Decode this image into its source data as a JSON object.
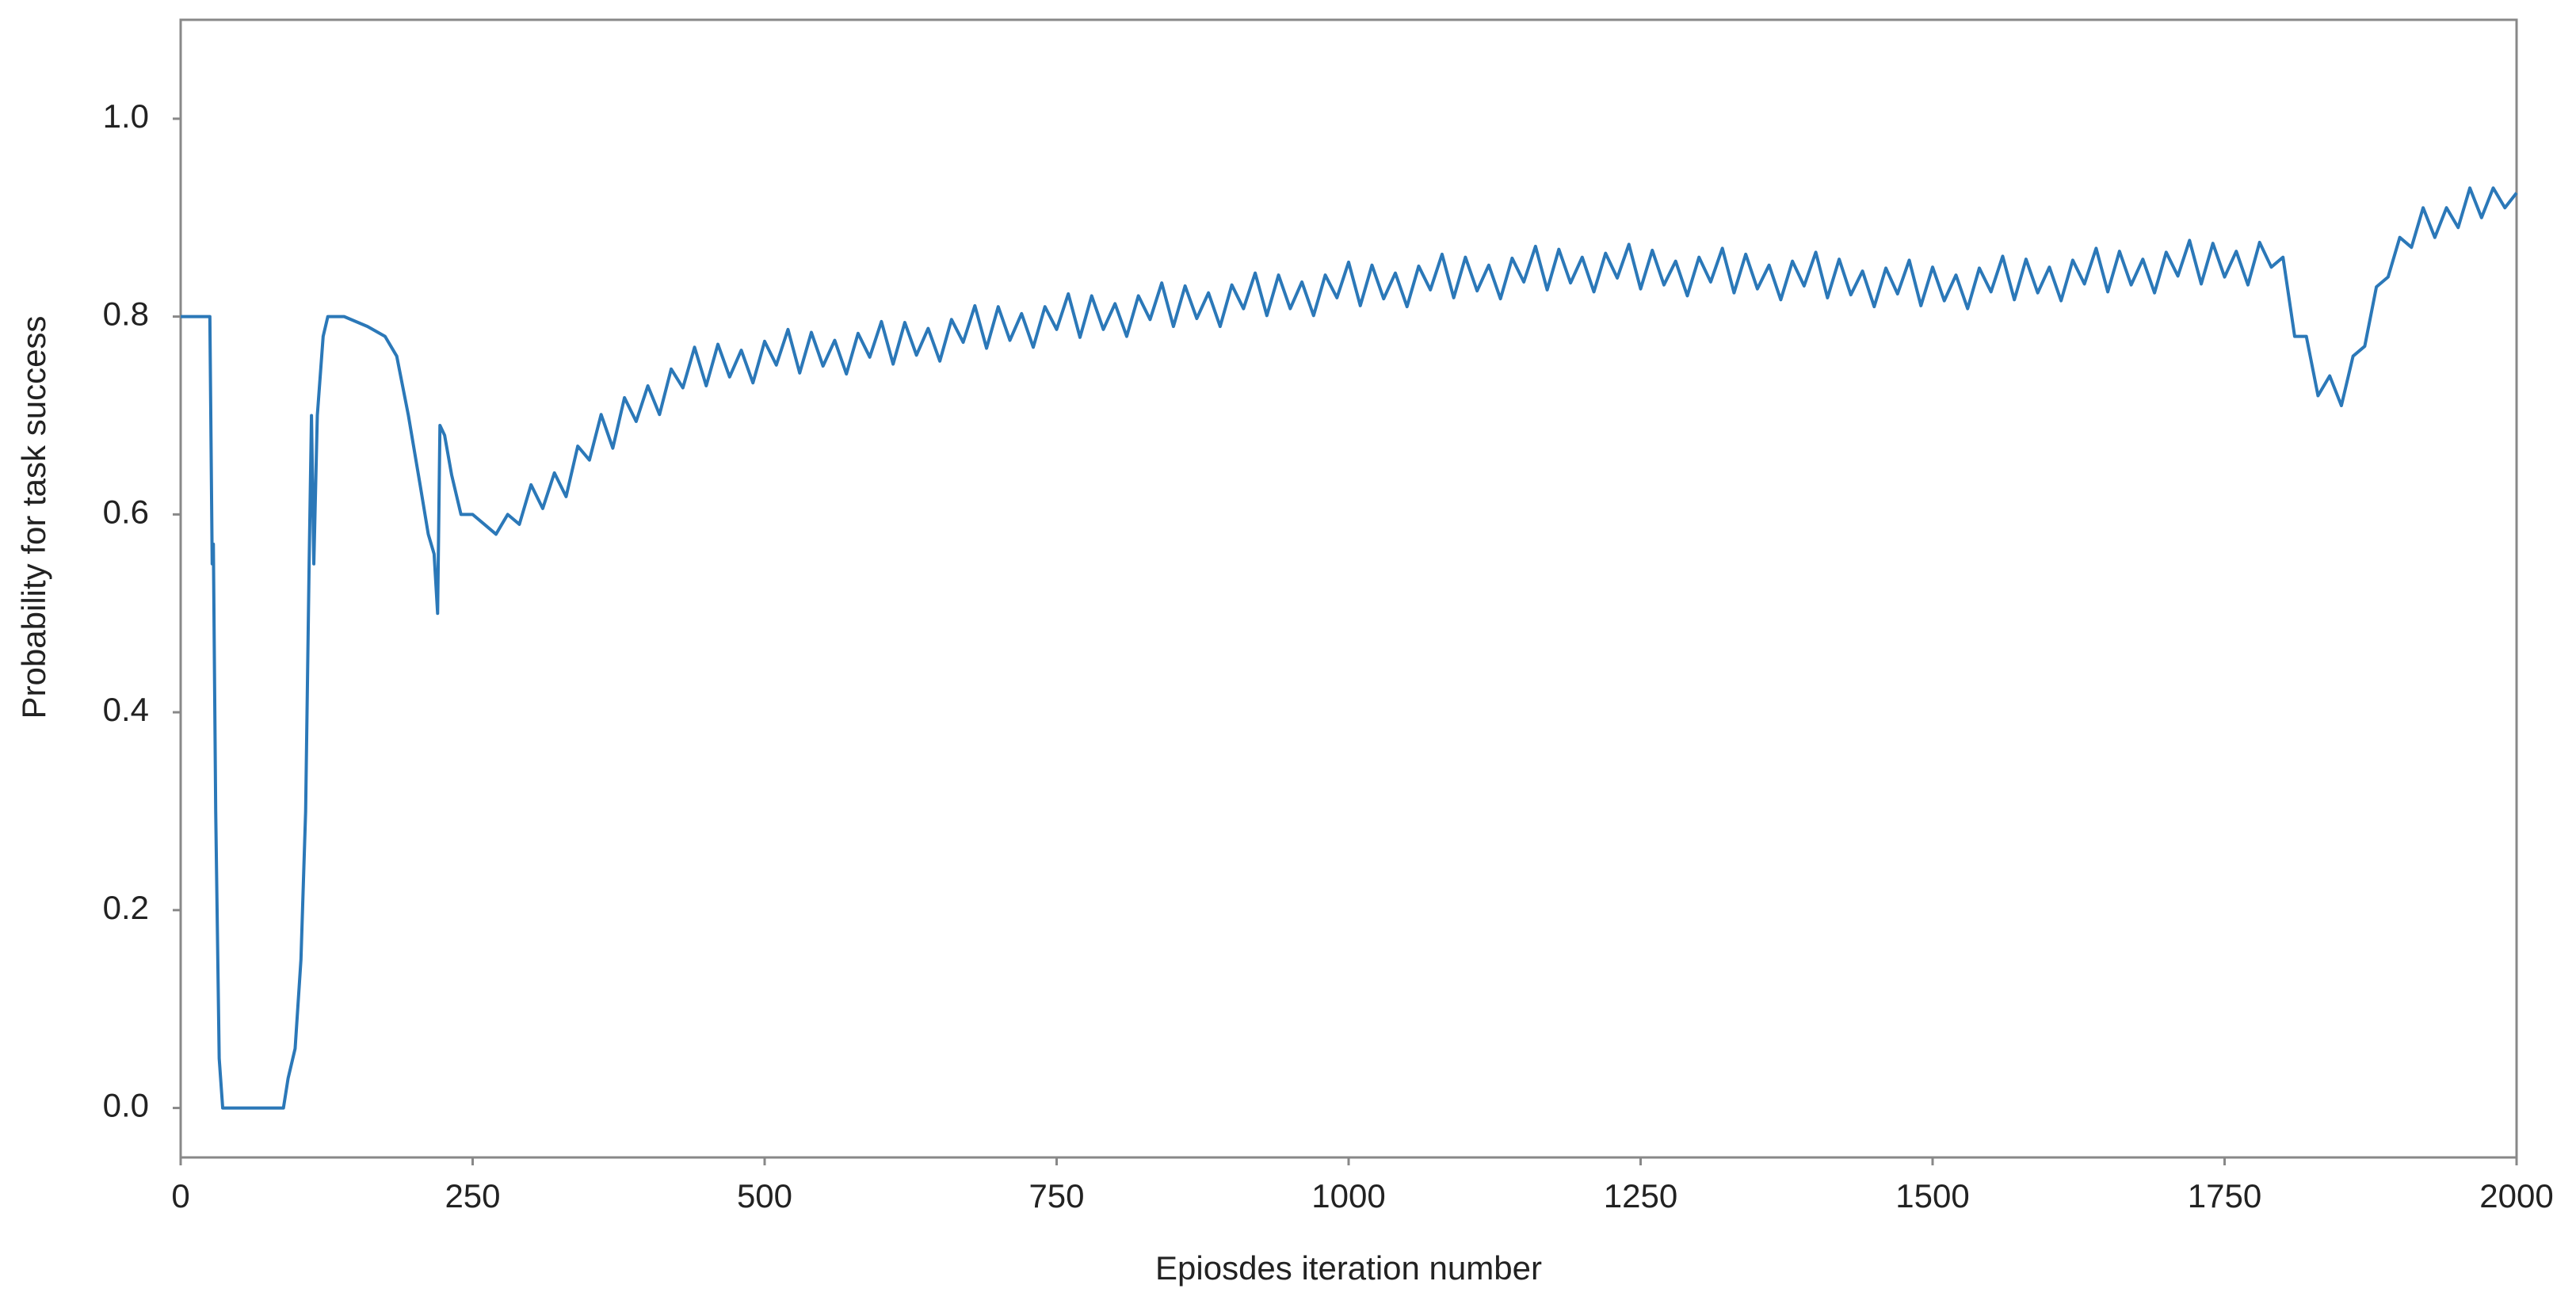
{
  "chart_data": {
    "type": "line",
    "xlabel": "Epiosdes iteration number",
    "ylabel": "Probability for task success",
    "color": "#2b78b8",
    "xlim": [
      0,
      2000
    ],
    "ylim": [
      -0.05,
      1.1
    ],
    "xticks": [
      0,
      250,
      500,
      750,
      1000,
      1250,
      1500,
      1750,
      2000
    ],
    "yticks": [
      {
        "value": 0,
        "label": "0.0"
      },
      0.2,
      0.4,
      0.6,
      0.8,
      {
        "value": 1,
        "label": "1.0"
      }
    ],
    "x": [
      0,
      25,
      27,
      28,
      30,
      33,
      36,
      88,
      92,
      98,
      103,
      107,
      110,
      112,
      114,
      117,
      122,
      126,
      140,
      160,
      175,
      185,
      195,
      205,
      212,
      217,
      220,
      222,
      226,
      232,
      240,
      250,
      260,
      270,
      280,
      290,
      300,
      310,
      320,
      330,
      340,
      350,
      360,
      370,
      380,
      390,
      400,
      410,
      420,
      430,
      440,
      450,
      460,
      470,
      480,
      490,
      500,
      510,
      520,
      530,
      540,
      550,
      560,
      570,
      580,
      590,
      600,
      610,
      620,
      630,
      640,
      650,
      660,
      670,
      680,
      690,
      700,
      710,
      720,
      730,
      740,
      750,
      760,
      770,
      780,
      790,
      800,
      810,
      820,
      830,
      840,
      850,
      860,
      870,
      880,
      890,
      900,
      910,
      920,
      930,
      940,
      950,
      960,
      970,
      980,
      990,
      1000,
      1010,
      1020,
      1030,
      1040,
      1050,
      1060,
      1070,
      1080,
      1090,
      1100,
      1110,
      1120,
      1130,
      1140,
      1150,
      1160,
      1170,
      1180,
      1190,
      1200,
      1210,
      1220,
      1230,
      1240,
      1250,
      1260,
      1270,
      1280,
      1290,
      1300,
      1310,
      1320,
      1330,
      1340,
      1350,
      1360,
      1370,
      1380,
      1390,
      1400,
      1410,
      1420,
      1430,
      1440,
      1450,
      1460,
      1470,
      1480,
      1490,
      1500,
      1510,
      1520,
      1530,
      1540,
      1550,
      1560,
      1570,
      1580,
      1590,
      1600,
      1610,
      1620,
      1630,
      1640,
      1650,
      1660,
      1670,
      1680,
      1690,
      1700,
      1710,
      1720,
      1730,
      1740,
      1750,
      1760,
      1770,
      1780,
      1790,
      1800,
      1810,
      1820,
      1830,
      1840,
      1850,
      1860,
      1870,
      1880,
      1890,
      1900,
      1910,
      1920,
      1930,
      1940,
      1950,
      1960,
      1970,
      1980,
      1990,
      2000
    ],
    "values": [
      0.8,
      0.8,
      0.55,
      0.57,
      0.3,
      0.05,
      0.0,
      0.0,
      0.03,
      0.06,
      0.15,
      0.3,
      0.55,
      0.7,
      0.55,
      0.7,
      0.78,
      0.8,
      0.8,
      0.79,
      0.78,
      0.76,
      0.7,
      0.63,
      0.58,
      0.56,
      0.5,
      0.69,
      0.68,
      0.64,
      0.6,
      0.6,
      0.59,
      0.58,
      0.6,
      0.59,
      0.63,
      0.606,
      0.642,
      0.618,
      0.669,
      0.655,
      0.701,
      0.667,
      0.718,
      0.694,
      0.73,
      0.701,
      0.747,
      0.728,
      0.769,
      0.73,
      0.772,
      0.739,
      0.766,
      0.733,
      0.775,
      0.751,
      0.787,
      0.743,
      0.784,
      0.75,
      0.776,
      0.742,
      0.783,
      0.759,
      0.795,
      0.752,
      0.794,
      0.761,
      0.788,
      0.755,
      0.797,
      0.774,
      0.811,
      0.768,
      0.81,
      0.776,
      0.803,
      0.769,
      0.81,
      0.787,
      0.823,
      0.779,
      0.821,
      0.787,
      0.813,
      0.78,
      0.821,
      0.797,
      0.834,
      0.79,
      0.831,
      0.798,
      0.824,
      0.79,
      0.832,
      0.808,
      0.844,
      0.801,
      0.842,
      0.808,
      0.835,
      0.801,
      0.842,
      0.819,
      0.855,
      0.811,
      0.852,
      0.818,
      0.844,
      0.81,
      0.851,
      0.827,
      0.863,
      0.819,
      0.86,
      0.826,
      0.852,
      0.818,
      0.859,
      0.835,
      0.871,
      0.827,
      0.868,
      0.834,
      0.86,
      0.825,
      0.864,
      0.839,
      0.873,
      0.828,
      0.867,
      0.832,
      0.856,
      0.821,
      0.86,
      0.835,
      0.869,
      0.824,
      0.863,
      0.828,
      0.852,
      0.817,
      0.856,
      0.831,
      0.865,
      0.819,
      0.858,
      0.822,
      0.846,
      0.81,
      0.849,
      0.823,
      0.857,
      0.811,
      0.85,
      0.816,
      0.842,
      0.808,
      0.849,
      0.825,
      0.861,
      0.817,
      0.858,
      0.824,
      0.85,
      0.816,
      0.857,
      0.833,
      0.869,
      0.825,
      0.866,
      0.832,
      0.858,
      0.824,
      0.865,
      0.841,
      0.877,
      0.833,
      0.874,
      0.84,
      0.866,
      0.832,
      0.875,
      0.85,
      0.86,
      0.78,
      0.78,
      0.72,
      0.74,
      0.71,
      0.76,
      0.77,
      0.83,
      0.84,
      0.88,
      0.87,
      0.91,
      0.88,
      0.91,
      0.89,
      0.93,
      0.9,
      0.93,
      0.91,
      0.925
    ]
  }
}
